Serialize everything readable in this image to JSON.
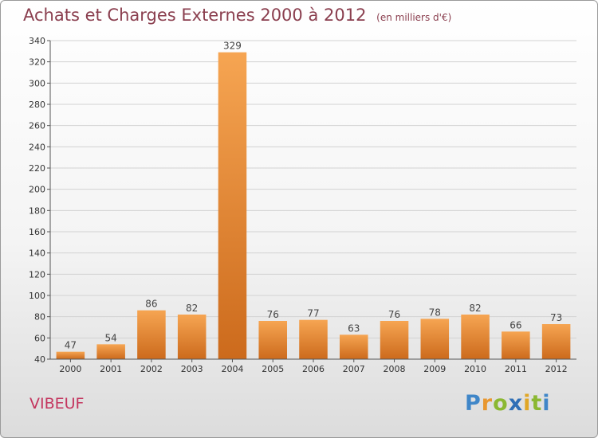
{
  "header": {
    "title": "Achats et Charges Externes 2000 à 2012",
    "unit": "(en milliers d'€)"
  },
  "commune": "VIBEUF",
  "logo": {
    "text": "Proxiti"
  },
  "colors": {
    "bar": "#ee8a3a",
    "title": "#8a3e4e",
    "commune": "#c4365f"
  },
  "chart_data": {
    "type": "bar",
    "title": "Achats et Charges Externes 2000 à 2012",
    "subtitle": "(en milliers d'€)",
    "categories": [
      "2000",
      "2001",
      "2002",
      "2003",
      "2004",
      "2005",
      "2006",
      "2007",
      "2008",
      "2009",
      "2010",
      "2011",
      "2012"
    ],
    "values": [
      47,
      54,
      86,
      82,
      329,
      76,
      77,
      63,
      76,
      78,
      82,
      66,
      73
    ],
    "ylim": [
      40,
      340
    ],
    "yticks": [
      40,
      60,
      80,
      100,
      120,
      140,
      160,
      180,
      200,
      220,
      240,
      260,
      280,
      300,
      320,
      340
    ],
    "grid": true,
    "xlabel": "",
    "ylabel": ""
  }
}
